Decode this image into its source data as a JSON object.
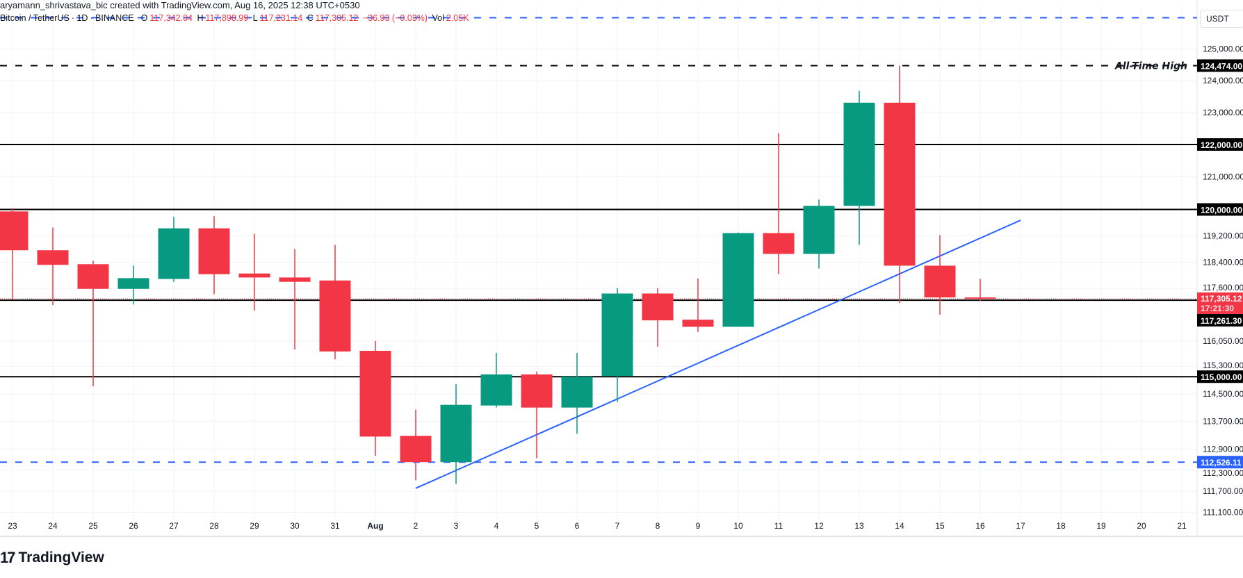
{
  "credit_line": "aryamann_shrivastava_bic created with TradingView.com, Aug 16, 2025 12:38 UTC+0530",
  "legend": {
    "symbol": "Bitcoin / TetherUS",
    "interval": "1D",
    "exchange": "BINANCE",
    "open_label": "O",
    "open": "117,342.04",
    "high_label": "H",
    "high": "117,898.99",
    "low_label": "L",
    "low": "117,231.14",
    "close_label": "C",
    "close": "117,305.12",
    "change": "−36.93 (−0.03%)",
    "vol_label": "Vol",
    "vol": "2.05K"
  },
  "currency": "USDT",
  "brand": "TradingView",
  "colors": {
    "up": "#089981",
    "down": "#F23645",
    "accent": "#2962FF",
    "level": "#000000",
    "grid": "#f0f3fa"
  },
  "chart_data": {
    "type": "candlestick",
    "scale": "log",
    "ylim": [
      110800,
      126400
    ],
    "grid": true,
    "x_ticks": [
      "23",
      "24",
      "25",
      "26",
      "27",
      "28",
      "29",
      "30",
      "31",
      "Aug",
      "2",
      "3",
      "4",
      "5",
      "6",
      "7",
      "8",
      "9",
      "10",
      "11",
      "12",
      "13",
      "14",
      "15",
      "16",
      "17",
      "18",
      "19",
      "20",
      "21"
    ],
    "y_ticks": [
      "125,000.00",
      "124,000.00",
      "123,000.00",
      "122,000.00",
      "121,000.00",
      "120,000.00",
      "119,200.00",
      "118,400.00",
      "117,600.00",
      "116,050.00",
      "115,300.00",
      "114,500.00",
      "113,700.00",
      "112,900.00",
      "112,300.00",
      "111,700.00",
      "111,100.00"
    ],
    "candles": [
      {
        "date": "Jul 23",
        "o": 119940,
        "h": 120040,
        "l": 117280,
        "c": 118760
      },
      {
        "date": "Jul 24",
        "o": 118760,
        "h": 119450,
        "l": 117115,
        "c": 118320
      },
      {
        "date": "Jul 25",
        "o": 118340,
        "h": 118440,
        "l": 114720,
        "c": 117600
      },
      {
        "date": "Jul 26",
        "o": 117600,
        "h": 118300,
        "l": 117135,
        "c": 117920
      },
      {
        "date": "Jul 27",
        "o": 117895,
        "h": 119775,
        "l": 117810,
        "c": 119425
      },
      {
        "date": "Jul 28",
        "o": 119425,
        "h": 119795,
        "l": 117440,
        "c": 118040
      },
      {
        "date": "Jul 29",
        "o": 118060,
        "h": 119260,
        "l": 116950,
        "c": 117940
      },
      {
        "date": "Jul 30",
        "o": 117940,
        "h": 118800,
        "l": 115800,
        "c": 117810
      },
      {
        "date": "Jul 31",
        "o": 117850,
        "h": 118925,
        "l": 115510,
        "c": 115740
      },
      {
        "date": "Aug 1",
        "o": 115760,
        "h": 116050,
        "l": 112710,
        "c": 113260
      },
      {
        "date": "Aug 2",
        "o": 113280,
        "h": 114040,
        "l": 112010,
        "c": 112526
      },
      {
        "date": "Aug 3",
        "o": 112526,
        "h": 114780,
        "l": 111905,
        "c": 114180
      },
      {
        "date": "Aug 4",
        "o": 114160,
        "h": 115700,
        "l": 114100,
        "c": 115065
      },
      {
        "date": "Aug 5",
        "o": 115065,
        "h": 115150,
        "l": 112640,
        "c": 114100
      },
      {
        "date": "Aug 6",
        "o": 114100,
        "h": 115700,
        "l": 113340,
        "c": 115000
      },
      {
        "date": "Aug 7",
        "o": 115020,
        "h": 117620,
        "l": 114260,
        "c": 117460
      },
      {
        "date": "Aug 8",
        "o": 117460,
        "h": 117620,
        "l": 115880,
        "c": 116660
      },
      {
        "date": "Aug 9",
        "o": 116680,
        "h": 117915,
        "l": 116320,
        "c": 116470
      },
      {
        "date": "Aug 10",
        "o": 116470,
        "h": 119300,
        "l": 116470,
        "c": 119280
      },
      {
        "date": "Aug 11",
        "o": 119280,
        "h": 122350,
        "l": 118040,
        "c": 118650
      },
      {
        "date": "Aug 12",
        "o": 118650,
        "h": 120300,
        "l": 118210,
        "c": 120110
      },
      {
        "date": "Aug 13",
        "o": 120110,
        "h": 123675,
        "l": 118925,
        "c": 123305
      },
      {
        "date": "Aug 14",
        "o": 123305,
        "h": 124474,
        "l": 117175,
        "c": 118295
      },
      {
        "date": "Aug 15",
        "o": 118295,
        "h": 119220,
        "l": 116825,
        "c": 117342
      },
      {
        "date": "Aug 16",
        "o": 117342.04,
        "h": 117898.99,
        "l": 117231.14,
        "c": 117305.12
      }
    ],
    "levels": [
      {
        "price": 124474,
        "style": "dashed",
        "color": "#000000",
        "label": "124,474.00",
        "text": "All-Time High"
      },
      {
        "price": 122000,
        "style": "solid",
        "color": "#000000",
        "label": "122,000.00"
      },
      {
        "price": 120000,
        "style": "solid",
        "color": "#000000",
        "label": "120,000.00"
      },
      {
        "price": 117261.3,
        "style": "solid",
        "color": "#000000",
        "label": "117,261.30"
      },
      {
        "price": 115000,
        "style": "solid",
        "color": "#000000",
        "label": "115,000.00"
      },
      {
        "price": 112526.11,
        "style": "dashed",
        "color": "#2962FF",
        "label": "112,526.11"
      },
      {
        "price": 126000,
        "style": "dashed",
        "color": "#2962FF"
      }
    ],
    "trendline": {
      "from": {
        "date": "Aug 2",
        "price": 111780
      },
      "to": {
        "date": "Aug 17",
        "price": 119670
      },
      "color": "#2962FF"
    },
    "last_price": {
      "price": 117305.12,
      "label": "117,305.12",
      "countdown": "17:21:30",
      "color": "#F23645"
    }
  }
}
